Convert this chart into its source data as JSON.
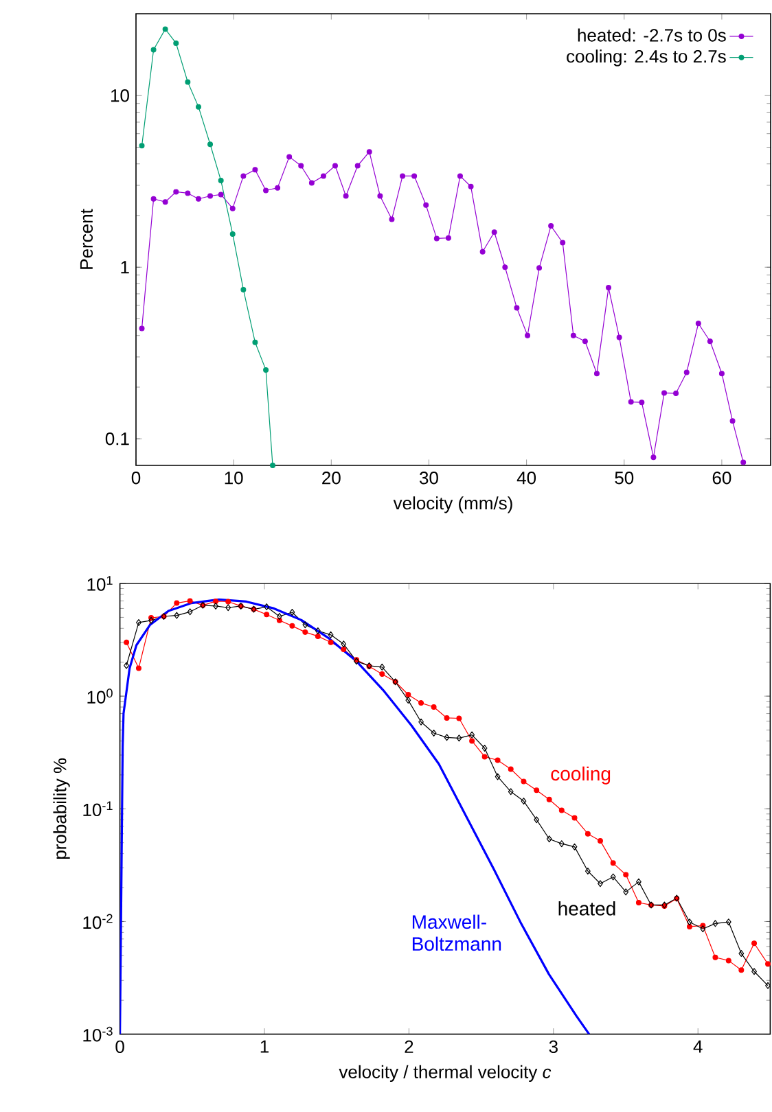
{
  "chart_data": [
    {
      "type": "line",
      "xlabel": "velocity (mm/s)",
      "ylabel": "Percent",
      "log": "y",
      "xlim": [
        0,
        65
      ],
      "ylim": [
        0.07,
        30
      ],
      "xticks": [
        0,
        10,
        20,
        30,
        40,
        50,
        60
      ],
      "yticks": [
        0.1,
        1,
        10
      ],
      "legend": "top right",
      "marker": "circle",
      "series": [
        {
          "name": "heated: -2.7s to 0s",
          "color": "#9400d3",
          "x": [
            0.6,
            1.8,
            3.0,
            4.1,
            5.3,
            6.4,
            7.6,
            8.7,
            9.9,
            11.0,
            12.2,
            13.3,
            14.5,
            15.7,
            16.9,
            18.0,
            19.2,
            20.4,
            21.5,
            22.7,
            23.9,
            25.0,
            26.2,
            27.3,
            28.5,
            29.7,
            30.8,
            32.0,
            33.2,
            34.3,
            35.5,
            36.7,
            37.8,
            39.0,
            40.1,
            41.3,
            42.5,
            43.7,
            44.8,
            46.0,
            47.2,
            48.4,
            49.5,
            50.7,
            51.8,
            53.0,
            54.1,
            55.3,
            56.4,
            57.6,
            58.8,
            60.0,
            61.1,
            62.2
          ],
          "values": [
            0.44,
            2.5,
            2.4,
            2.75,
            2.7,
            2.5,
            2.6,
            2.65,
            2.2,
            3.4,
            3.7,
            2.8,
            2.9,
            4.4,
            3.9,
            3.1,
            3.4,
            3.9,
            2.6,
            3.9,
            4.7,
            2.6,
            1.9,
            3.4,
            3.4,
            2.3,
            1.47,
            1.48,
            3.4,
            2.95,
            1.23,
            1.6,
            1.0,
            0.58,
            0.4,
            0.99,
            1.74,
            1.39,
            0.4,
            0.37,
            0.24,
            0.76,
            0.39,
            0.164,
            0.163,
            0.078,
            0.185,
            0.184,
            0.244,
            0.47,
            0.37,
            0.24,
            0.127,
            0.073
          ]
        },
        {
          "name": "cooling: 2.4s to 2.7s",
          "color": "#009e73",
          "x": [
            0.6,
            1.8,
            3.0,
            4.1,
            5.3,
            6.4,
            7.6,
            8.7,
            9.9,
            11.0,
            12.2,
            13.3,
            14.0
          ],
          "values": [
            5.1,
            18.5,
            24.4,
            20.2,
            12.0,
            8.6,
            5.2,
            3.2,
            1.56,
            0.74,
            0.365,
            0.252,
            0.07
          ]
        }
      ]
    },
    {
      "type": "line",
      "xlabel": "velocity / thermal velocity   *c*",
      "ylabel": "probability %",
      "log": "y",
      "xlim": [
        0,
        4.5
      ],
      "ylim": [
        0.001,
        10
      ],
      "xticks": [
        0,
        1,
        2,
        3,
        4
      ],
      "yticks": [
        {
          "value": 0.001,
          "label": "10$^{-3}$"
        },
        {
          "value": 0.01,
          "label": "10$^{-2}$"
        },
        {
          "value": 0.1,
          "label": "10$^{-1}$"
        },
        {
          "value": 1,
          "label": "10$^{0}$"
        },
        {
          "value": 10,
          "label": "10$^{1}$"
        }
      ],
      "x": [
        0.045,
        0.13,
        0.216,
        0.304,
        0.393,
        0.485,
        0.574,
        0.663,
        0.749,
        0.837,
        0.926,
        1.015,
        1.104,
        1.192,
        1.282,
        1.37,
        1.459,
        1.548,
        1.637,
        1.725,
        1.814,
        1.906,
        1.995,
        2.084,
        2.172,
        2.262,
        2.347,
        2.436,
        2.524,
        2.614,
        2.705,
        2.794,
        2.883,
        2.971,
        3.057,
        3.146,
        3.238,
        3.324,
        3.413,
        3.501,
        3.59,
        3.676,
        3.768,
        3.853,
        3.942,
        4.034,
        4.12,
        4.212,
        4.3,
        4.389,
        4.484
      ],
      "series": [
        {
          "name": "cooling",
          "color": "#ff0000",
          "marker": "circle",
          "values": [
            3.0,
            1.77,
            4.95,
            5.1,
            6.7,
            7.0,
            6.4,
            6.95,
            6.9,
            6.3,
            5.9,
            5.3,
            4.7,
            4.2,
            3.7,
            3.4,
            3.0,
            2.6,
            2.1,
            1.84,
            1.57,
            1.34,
            1.03,
            0.87,
            0.8,
            0.64,
            0.635,
            0.4,
            0.29,
            0.27,
            0.225,
            0.175,
            0.146,
            0.121,
            0.097,
            0.083,
            0.06,
            0.052,
            0.033,
            0.026,
            0.0147,
            0.014,
            0.0137,
            0.016,
            0.009,
            0.0092,
            0.0048,
            0.0045,
            0.0037,
            0.0064,
            0.0042
          ]
        },
        {
          "name": "heated",
          "color": "#000000",
          "marker": "diamond",
          "values": [
            1.87,
            4.5,
            4.7,
            5.1,
            5.2,
            5.6,
            6.4,
            6.3,
            6.1,
            6.3,
            5.9,
            6.2,
            5.1,
            5.55,
            4.3,
            3.8,
            3.5,
            2.9,
            2.04,
            1.86,
            1.81,
            1.34,
            0.92,
            0.59,
            0.47,
            0.43,
            0.424,
            0.453,
            0.345,
            0.193,
            0.142,
            0.117,
            0.08,
            0.054,
            0.049,
            0.046,
            0.028,
            0.0217,
            0.0249,
            0.0183,
            0.0225,
            0.014,
            0.014,
            0.0161,
            0.0099,
            0.0086,
            0.0096,
            0.0099,
            0.0052,
            0.0036,
            0.0027
          ]
        },
        {
          "name": "Maxwell-Boltzmann",
          "color": "#0000ff",
          "marker": "none",
          "x": [
            0,
            0.019,
            0.025,
            0.067,
            0.114,
            0.209,
            0.336,
            0.495,
            0.685,
            0.875,
            1.066,
            1.256,
            1.446,
            1.637,
            1.827,
            2.017,
            2.207,
            2.398,
            2.588,
            2.778,
            2.969,
            3.159,
            3.247
          ],
          "values": [
            0.001,
            0.36,
            0.7,
            1.77,
            2.83,
            4.3,
            5.7,
            6.7,
            7.2,
            6.9,
            6.0,
            4.73,
            3.26,
            2.04,
            1.11,
            0.55,
            0.25,
            0.085,
            0.029,
            0.0095,
            0.0034,
            0.00145,
            0.001
          ]
        }
      ]
    }
  ]
}
